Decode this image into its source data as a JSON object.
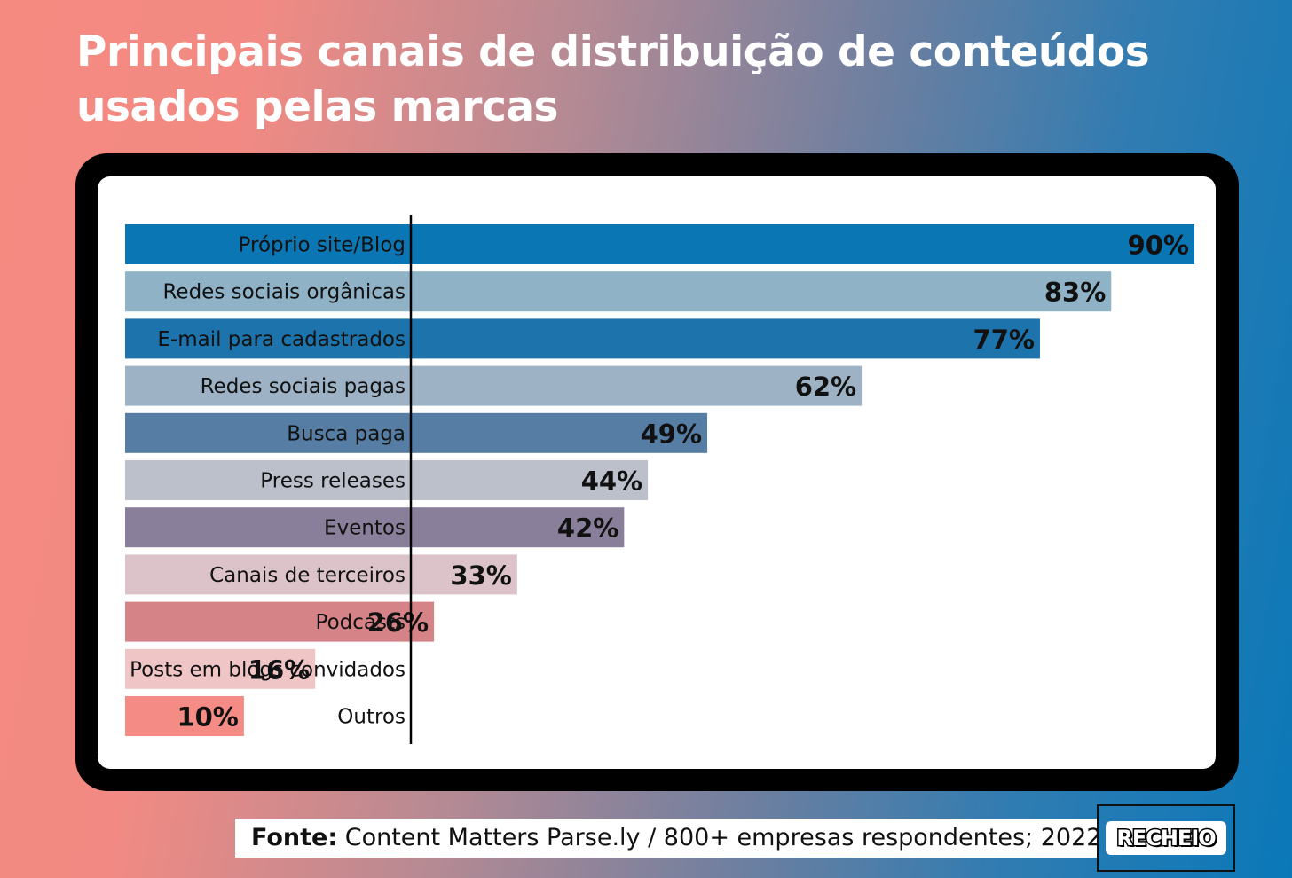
{
  "title_line1": "Principais canais de distribuição de conteúdos",
  "title_line2": "usados pelas marcas",
  "chart_data": {
    "type": "bar",
    "orientation": "horizontal",
    "categories": [
      "Próprio site/Blog",
      "Redes sociais orgânicas",
      "E-mail para cadastrados",
      "Redes sociais pagas",
      "Busca paga",
      "Press releases",
      "Eventos",
      "Canais de terceiros",
      "Podcasts",
      "Posts em blogs convidados",
      "Outros"
    ],
    "values": [
      90,
      83,
      77,
      62,
      49,
      44,
      42,
      33,
      26,
      16,
      10
    ],
    "value_labels": [
      "90%",
      "83%",
      "77%",
      "62%",
      "49%",
      "44%",
      "42%",
      "33%",
      "26%",
      "16%",
      "10%"
    ],
    "colors": [
      "#0b76b4",
      "#8fb2c6",
      "#1d74ad",
      "#9db3c5",
      "#567da4",
      "#bcc0cb",
      "#8a7f9a",
      "#dcc3c9",
      "#d58387",
      "#f0c5c6",
      "#f58b85"
    ],
    "xlim": [
      0,
      90
    ],
    "grid": false,
    "legend": "none"
  },
  "source_label": "Fonte:",
  "source_text": " Content Matters Parse.ly / 800+ empresas respondentes; 2022",
  "logo_text": "RECHEIO"
}
